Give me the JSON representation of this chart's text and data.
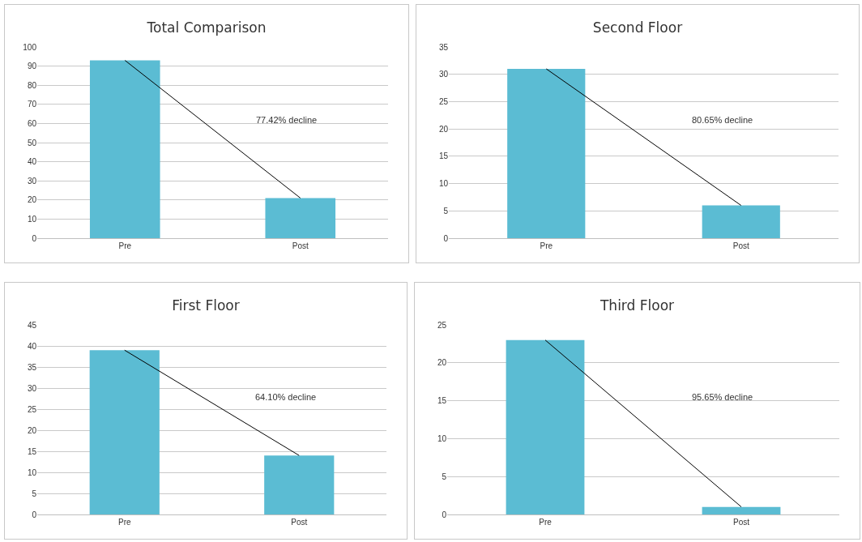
{
  "chart_data": [
    {
      "type": "bar",
      "title": "Total Comparison",
      "categories": [
        "Pre",
        "Post"
      ],
      "series": [
        {
          "color": "#5bbcd3",
          "values": [
            93,
            21
          ]
        },
        {
          "type": "line",
          "color": "#000000",
          "values": [
            93,
            21
          ]
        }
      ],
      "marker": "none",
      "ylim": [
        0,
        100
      ],
      "yticks": [
        0,
        10,
        20,
        30,
        40,
        50,
        60,
        70,
        80,
        90,
        100
      ],
      "grid": "y",
      "annotations": [
        "77.42% decline"
      ]
    },
    {
      "type": "bar",
      "title": "Second Floor",
      "categories": [
        "Pre",
        "Post"
      ],
      "series": [
        {
          "color": "#5bbcd3",
          "values": [
            31,
            6
          ]
        },
        {
          "type": "line",
          "color": "#000000",
          "values": [
            31,
            6
          ]
        }
      ],
      "marker": "none",
      "ylim": [
        0,
        35
      ],
      "yticks": [
        0,
        5,
        10,
        15,
        20,
        25,
        30,
        35
      ],
      "grid": "y",
      "annotations": [
        "80.65% decline"
      ]
    },
    {
      "type": "bar",
      "title": "First Floor",
      "categories": [
        "Pre",
        "Post"
      ],
      "series": [
        {
          "color": "#5bbcd3",
          "values": [
            39,
            14
          ]
        },
        {
          "type": "line",
          "color": "#000000",
          "values": [
            39,
            14
          ]
        }
      ],
      "marker": "none",
      "ylim": [
        0,
        45
      ],
      "yticks": [
        0,
        5,
        10,
        15,
        20,
        25,
        30,
        35,
        40,
        45
      ],
      "grid": "y",
      "annotations": [
        "64.10% decline"
      ]
    },
    {
      "type": "bar",
      "title": "Third Floor",
      "categories": [
        "Pre",
        "Post"
      ],
      "series": [
        {
          "color": "#5bbcd3",
          "values": [
            23,
            1
          ]
        },
        {
          "type": "line",
          "color": "#000000",
          "values": [
            23,
            1
          ]
        }
      ],
      "marker": "none",
      "ylim": [
        0,
        25
      ],
      "yticks": [
        0,
        5,
        10,
        15,
        20,
        25
      ],
      "grid": "y",
      "annotations": [
        "95.65% decline"
      ]
    }
  ]
}
